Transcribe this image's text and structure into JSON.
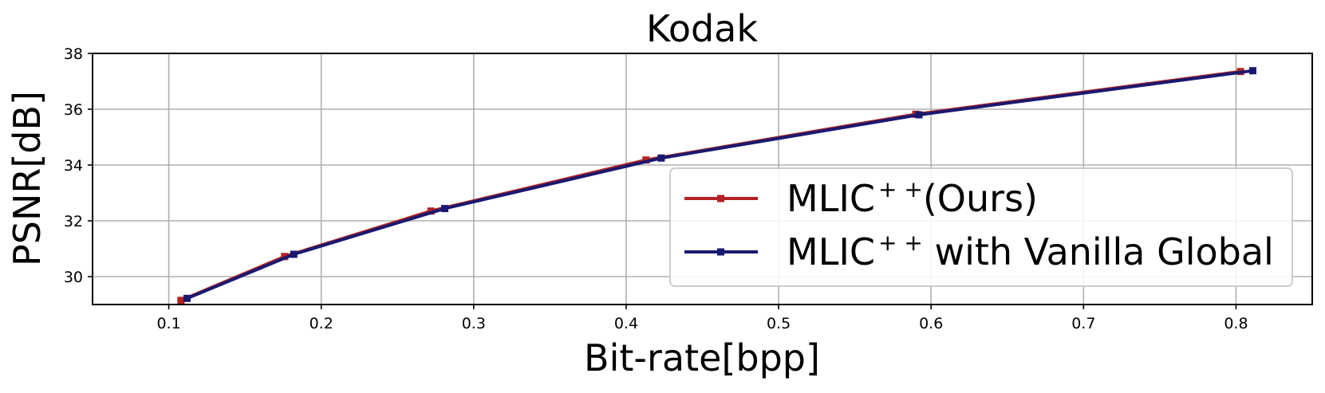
{
  "chart_data": {
    "type": "line",
    "title": "Kodak",
    "xlabel": "Bit-rate[bpp]",
    "ylabel": "PSNR[dB]",
    "xlim": [
      0.05,
      0.85
    ],
    "ylim": [
      29.0,
      38.0
    ],
    "xticks": [
      "0.1",
      "0.2",
      "0.3",
      "0.4",
      "0.5",
      "0.6",
      "0.7",
      "0.8"
    ],
    "yticks": [
      "30",
      "32",
      "34",
      "36",
      "38"
    ],
    "grid": true,
    "legend_position": "lower-right",
    "series": [
      {
        "name": "MLIC",
        "name_sup": "+ +",
        "name_suffix": "(Ours)",
        "color": "#b22222",
        "marker": "square",
        "x": [
          0.108,
          0.176,
          0.272,
          0.413,
          0.59,
          0.803
        ],
        "y": [
          29.15,
          30.72,
          32.35,
          34.18,
          35.82,
          37.35
        ]
      },
      {
        "name": "MLIC",
        "name_sup": "+ +",
        "name_suffix": " with Vanilla Global",
        "color": "#191970",
        "marker": "square",
        "x": [
          0.112,
          0.182,
          0.281,
          0.423,
          0.592,
          0.811
        ],
        "y": [
          29.22,
          30.8,
          32.44,
          34.25,
          35.8,
          37.38
        ]
      }
    ]
  }
}
